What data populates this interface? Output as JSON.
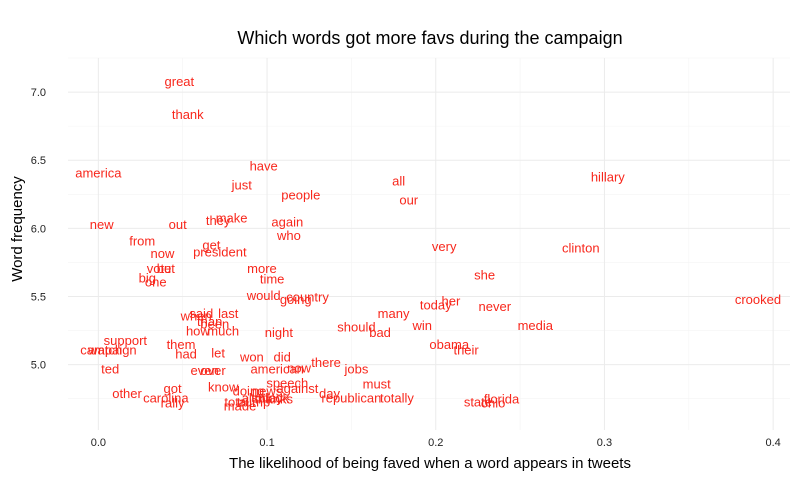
{
  "chart_data": {
    "type": "scatter",
    "title": "Which words got more favs during the campaign",
    "xlabel": "The likelihood of being faved when a word appears in tweets",
    "ylabel": "Word frequency",
    "xlim": [
      -0.018,
      0.41
    ],
    "ylim": [
      4.52,
      7.25
    ],
    "x_ticks": [
      0.0,
      0.1,
      0.2,
      0.3,
      0.4
    ],
    "x_tick_labels": [
      "0.0",
      "0.1",
      "0.2",
      "0.3",
      "0.4"
    ],
    "y_ticks": [
      5.0,
      5.5,
      6.0,
      6.5,
      7.0
    ],
    "y_tick_labels": [
      "5.0",
      "5.5",
      "6.0",
      "6.5",
      "7.0"
    ],
    "grid": true,
    "label_color": "#f8271c",
    "points": [
      {
        "label": "great",
        "x": 0.048,
        "y": 7.08
      },
      {
        "label": "thank",
        "x": 0.053,
        "y": 6.84
      },
      {
        "label": "america",
        "x": 0.0,
        "y": 6.41
      },
      {
        "label": "have",
        "x": 0.098,
        "y": 6.46
      },
      {
        "label": "just",
        "x": 0.085,
        "y": 6.32
      },
      {
        "label": "people",
        "x": 0.12,
        "y": 6.25
      },
      {
        "label": "all",
        "x": 0.178,
        "y": 6.35
      },
      {
        "label": "our",
        "x": 0.184,
        "y": 6.21
      },
      {
        "label": "hillary",
        "x": 0.302,
        "y": 6.38
      },
      {
        "label": "new",
        "x": 0.002,
        "y": 6.03
      },
      {
        "label": "out",
        "x": 0.047,
        "y": 6.03
      },
      {
        "label": "they",
        "x": 0.071,
        "y": 6.06
      },
      {
        "label": "make",
        "x": 0.079,
        "y": 6.08
      },
      {
        "label": "again",
        "x": 0.112,
        "y": 6.05
      },
      {
        "label": "who",
        "x": 0.113,
        "y": 5.95
      },
      {
        "label": "from",
        "x": 0.026,
        "y": 5.91
      },
      {
        "label": "get",
        "x": 0.067,
        "y": 5.88
      },
      {
        "label": "now",
        "x": 0.038,
        "y": 5.82
      },
      {
        "label": "president",
        "x": 0.072,
        "y": 5.83
      },
      {
        "label": "very",
        "x": 0.205,
        "y": 5.87
      },
      {
        "label": "clinton",
        "x": 0.286,
        "y": 5.86
      },
      {
        "label": "vote",
        "x": 0.036,
        "y": 5.71
      },
      {
        "label": "but",
        "x": 0.04,
        "y": 5.71
      },
      {
        "label": "more",
        "x": 0.097,
        "y": 5.71
      },
      {
        "label": "she",
        "x": 0.229,
        "y": 5.66
      },
      {
        "label": "big",
        "x": 0.029,
        "y": 5.64
      },
      {
        "label": "one",
        "x": 0.034,
        "y": 5.61
      },
      {
        "label": "time",
        "x": 0.103,
        "y": 5.63
      },
      {
        "label": "would",
        "x": 0.098,
        "y": 5.51
      },
      {
        "label": "country",
        "x": 0.124,
        "y": 5.5
      },
      {
        "label": "going",
        "x": 0.117,
        "y": 5.48
      },
      {
        "label": "crooked",
        "x": 0.391,
        "y": 5.48
      },
      {
        "label": "her",
        "x": 0.209,
        "y": 5.47
      },
      {
        "label": "today",
        "x": 0.2,
        "y": 5.44
      },
      {
        "label": "never",
        "x": 0.235,
        "y": 5.43
      },
      {
        "label": "said",
        "x": 0.061,
        "y": 5.38
      },
      {
        "label": "last",
        "x": 0.077,
        "y": 5.38
      },
      {
        "label": "when",
        "x": 0.058,
        "y": 5.36
      },
      {
        "label": "many",
        "x": 0.175,
        "y": 5.38
      },
      {
        "label": "than",
        "x": 0.066,
        "y": 5.32
      },
      {
        "label": "been",
        "x": 0.069,
        "y": 5.3
      },
      {
        "label": "should",
        "x": 0.153,
        "y": 5.28
      },
      {
        "label": "win",
        "x": 0.192,
        "y": 5.29
      },
      {
        "label": "media",
        "x": 0.259,
        "y": 5.29
      },
      {
        "label": "how",
        "x": 0.059,
        "y": 5.25
      },
      {
        "label": "much",
        "x": 0.074,
        "y": 5.25
      },
      {
        "label": "night",
        "x": 0.107,
        "y": 5.24
      },
      {
        "label": "bad",
        "x": 0.167,
        "y": 5.24
      },
      {
        "label": "support",
        "x": 0.016,
        "y": 5.18
      },
      {
        "label": "them",
        "x": 0.049,
        "y": 5.15
      },
      {
        "label": "obama",
        "x": 0.208,
        "y": 5.15
      },
      {
        "label": "campaign",
        "x": 0.006,
        "y": 5.11
      },
      {
        "label": "watch",
        "x": 0.004,
        "y": 5.11
      },
      {
        "label": "their",
        "x": 0.218,
        "y": 5.11
      },
      {
        "label": "had",
        "x": 0.052,
        "y": 5.08
      },
      {
        "label": "let",
        "x": 0.071,
        "y": 5.09
      },
      {
        "label": "won",
        "x": 0.091,
        "y": 5.06
      },
      {
        "label": "did",
        "x": 0.109,
        "y": 5.06
      },
      {
        "label": "there",
        "x": 0.135,
        "y": 5.02
      },
      {
        "label": "ted",
        "x": 0.007,
        "y": 4.97
      },
      {
        "label": "even",
        "x": 0.063,
        "y": 4.96
      },
      {
        "label": "over",
        "x": 0.068,
        "y": 4.96
      },
      {
        "label": "american",
        "x": 0.106,
        "y": 4.97
      },
      {
        "label": "now",
        "x": 0.119,
        "y": 4.98
      },
      {
        "label": "jobs",
        "x": 0.153,
        "y": 4.97
      },
      {
        "label": "must",
        "x": 0.165,
        "y": 4.86
      },
      {
        "label": "speech",
        "x": 0.112,
        "y": 4.87
      },
      {
        "label": "know",
        "x": 0.074,
        "y": 4.84
      },
      {
        "label": "got",
        "x": 0.044,
        "y": 4.83
      },
      {
        "label": "against",
        "x": 0.118,
        "y": 4.83
      },
      {
        "label": "doing",
        "x": 0.089,
        "y": 4.81
      },
      {
        "label": "news",
        "x": 0.1,
        "y": 4.81
      },
      {
        "label": "other",
        "x": 0.017,
        "y": 4.79
      },
      {
        "label": "day",
        "x": 0.137,
        "y": 4.79
      },
      {
        "label": "carolina",
        "x": 0.04,
        "y": 4.76
      },
      {
        "label": "also",
        "x": 0.092,
        "y": 4.76
      },
      {
        "label": "today",
        "x": 0.1,
        "y": 4.76
      },
      {
        "label": "look",
        "x": 0.106,
        "y": 4.76
      },
      {
        "label": "thanks",
        "x": 0.104,
        "y": 4.75
      },
      {
        "label": "republican",
        "x": 0.15,
        "y": 4.76
      },
      {
        "label": "totally",
        "x": 0.177,
        "y": 4.76
      },
      {
        "label": "florida",
        "x": 0.239,
        "y": 4.75
      },
      {
        "label": "rally",
        "x": 0.044,
        "y": 4.72
      },
      {
        "label": "total",
        "x": 0.082,
        "y": 4.73
      },
      {
        "label": "trump",
        "x": 0.092,
        "y": 4.73
      },
      {
        "label": "state",
        "x": 0.225,
        "y": 4.73
      },
      {
        "label": "ohio",
        "x": 0.234,
        "y": 4.72
      },
      {
        "label": "made",
        "x": 0.084,
        "y": 4.7
      }
    ]
  }
}
